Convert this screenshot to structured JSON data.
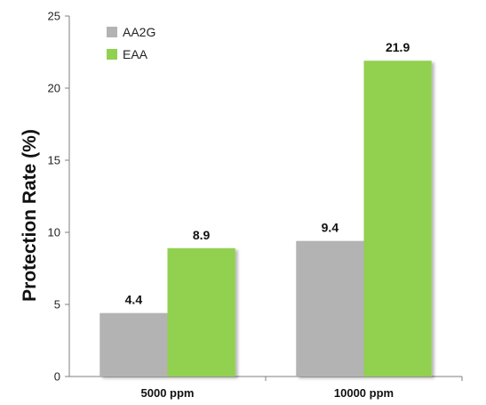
{
  "chart_data": {
    "type": "bar",
    "categories": [
      "5000 ppm",
      "10000 ppm"
    ],
    "series": [
      {
        "name": "AA2G",
        "values": [
          4.4,
          9.4
        ],
        "color": "#b3b3b3",
        "labels": [
          "4.4",
          "9.4"
        ]
      },
      {
        "name": "EAA",
        "values": [
          8.9,
          21.9
        ],
        "color": "#92d050",
        "labels": [
          "8.9",
          "21.9"
        ]
      }
    ],
    "ylabel": "Protection Rate (%)",
    "ylim": [
      0,
      25
    ],
    "yticks": [
      0,
      5,
      10,
      15,
      20,
      25
    ],
    "grid": false,
    "legend_position": "top-left"
  }
}
